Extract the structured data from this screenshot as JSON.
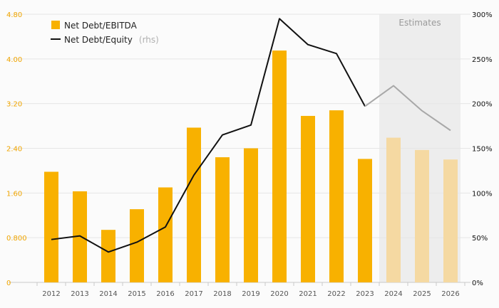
{
  "chart_data": {
    "type": "bar",
    "categories": [
      "2012",
      "2013",
      "2014",
      "2015",
      "2016",
      "2017",
      "2018",
      "2019",
      "2020",
      "2021",
      "2022",
      "2023",
      "2024",
      "2025",
      "2026"
    ],
    "series": [
      {
        "name": "Net Debt/EBITDA",
        "kind": "bar",
        "axis": "left",
        "color": "#f8b100",
        "estimate_color": "#f5d9a2",
        "values": [
          1.98,
          1.63,
          0.94,
          1.31,
          1.7,
          2.77,
          2.24,
          2.4,
          4.15,
          2.98,
          3.08,
          2.21,
          2.59,
          2.37,
          2.2
        ]
      },
      {
        "name": "Net Debt/Equity",
        "name_suffix": "(rhs)",
        "kind": "line",
        "axis": "right",
        "color": "#111111",
        "estimate_color": "#a8a8a8",
        "values": [
          48,
          52,
          34,
          45,
          62,
          120,
          165,
          176,
          295,
          266,
          256,
          197,
          220,
          192,
          170
        ]
      }
    ],
    "estimate_start_index": 12,
    "estimates_label": "Estimates",
    "y_left": {
      "ylim": [
        0,
        4.8
      ],
      "ticks": [
        0,
        0.8,
        1.6,
        2.4,
        3.2,
        4.0,
        4.8
      ],
      "tick_labels": [
        "0",
        "0.800",
        "1.60",
        "2.40",
        "3.20",
        "4.00",
        "4.80"
      ],
      "color": "#f0a500"
    },
    "y_right": {
      "ylim": [
        0,
        300
      ],
      "ticks": [
        0,
        50,
        100,
        150,
        200,
        250,
        300
      ],
      "tick_labels": [
        "0%",
        "50%",
        "100%",
        "150%",
        "200%",
        "250%",
        "300%"
      ]
    },
    "legend_placement": "top-left",
    "grid": true
  }
}
